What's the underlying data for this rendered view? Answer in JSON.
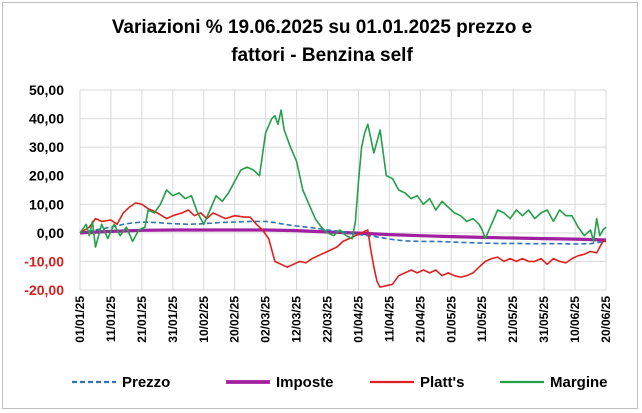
{
  "chart_data": {
    "type": "line",
    "title_lines": [
      "Variazioni % 19.06.2025 su 01.01.2025 prezzo e",
      "fattori - Benzina self"
    ],
    "xlabel": "",
    "ylabel": "",
    "ylim": [
      -20,
      50
    ],
    "y_ticks": [
      "50,00",
      "40,00",
      "30,00",
      "20,00",
      "10,00",
      "0,00",
      "-10,00",
      "-20,00"
    ],
    "y_tick_values": [
      50,
      40,
      30,
      20,
      10,
      0,
      -10,
      -20
    ],
    "negative_tick_color": "#d62020",
    "grid": true,
    "legend_position": "bottom",
    "x_tick_labels": [
      "01/01/25",
      "11/01/25",
      "21/01/25",
      "31/01/25",
      "10/02/25",
      "20/02/25",
      "02/03/25",
      "12/03/25",
      "22/03/25",
      "01/04/25",
      "11/04/25",
      "21/04/25",
      "01/05/25",
      "11/05/25",
      "21/05/25",
      "31/05/25",
      "10/06/25",
      "20/06/25"
    ],
    "x_tick_days": [
      0,
      10,
      20,
      30,
      40,
      50,
      60,
      70,
      80,
      90,
      100,
      110,
      120,
      130,
      140,
      150,
      160,
      170
    ],
    "x_range_days": [
      0,
      170
    ],
    "series": [
      {
        "name": "Prezzo",
        "color": "#2e75b6",
        "style": "dashed",
        "points": [
          [
            0,
            0
          ],
          [
            5,
            1
          ],
          [
            10,
            2
          ],
          [
            15,
            3.2
          ],
          [
            20,
            3.8
          ],
          [
            25,
            3.6
          ],
          [
            30,
            3.2
          ],
          [
            35,
            3
          ],
          [
            40,
            3.2
          ],
          [
            45,
            3.6
          ],
          [
            50,
            3.8
          ],
          [
            55,
            4
          ],
          [
            60,
            4
          ],
          [
            63,
            3.6
          ],
          [
            66,
            3
          ],
          [
            70,
            2.4
          ],
          [
            75,
            1.8
          ],
          [
            80,
            1
          ],
          [
            85,
            0.4
          ],
          [
            90,
            -0.6
          ],
          [
            95,
            -1.2
          ],
          [
            100,
            -2.2
          ],
          [
            105,
            -2.8
          ],
          [
            110,
            -3
          ],
          [
            115,
            -3
          ],
          [
            120,
            -3.2
          ],
          [
            125,
            -3.4
          ],
          [
            130,
            -3.6
          ],
          [
            135,
            -3.7
          ],
          [
            140,
            -3.7
          ],
          [
            145,
            -3.8
          ],
          [
            150,
            -3.8
          ],
          [
            155,
            -3.8
          ],
          [
            160,
            -3.9
          ],
          [
            165,
            -3.8
          ],
          [
            170,
            -2.9
          ]
        ]
      },
      {
        "name": "Imposte",
        "color": "#a020a0",
        "style": "solid-thick",
        "points": [
          [
            0,
            0
          ],
          [
            10,
            0.5
          ],
          [
            20,
            0.9
          ],
          [
            30,
            1
          ],
          [
            40,
            1
          ],
          [
            50,
            1
          ],
          [
            60,
            1
          ],
          [
            70,
            0.8
          ],
          [
            80,
            0.3
          ],
          [
            90,
            -0.1
          ],
          [
            100,
            -0.6
          ],
          [
            110,
            -1
          ],
          [
            120,
            -1.3
          ],
          [
            130,
            -1.6
          ],
          [
            140,
            -1.8
          ],
          [
            150,
            -2
          ],
          [
            160,
            -2.2
          ],
          [
            170,
            -2.5
          ]
        ]
      },
      {
        "name": "Platt's",
        "color": "#e02020",
        "style": "solid",
        "points": [
          [
            0,
            0
          ],
          [
            3,
            2
          ],
          [
            5,
            5
          ],
          [
            7,
            4
          ],
          [
            10,
            4.5
          ],
          [
            12,
            3
          ],
          [
            14,
            7
          ],
          [
            16,
            9
          ],
          [
            18,
            10.5
          ],
          [
            20,
            10
          ],
          [
            22,
            8.5
          ],
          [
            25,
            7
          ],
          [
            28,
            5
          ],
          [
            30,
            6
          ],
          [
            33,
            7
          ],
          [
            35,
            8
          ],
          [
            37,
            6
          ],
          [
            39,
            7
          ],
          [
            41,
            5
          ],
          [
            43,
            7
          ],
          [
            45,
            6
          ],
          [
            47,
            5
          ],
          [
            50,
            6
          ],
          [
            53,
            5.5
          ],
          [
            55,
            5.5
          ],
          [
            57,
            3
          ],
          [
            59,
            1
          ],
          [
            61,
            -2
          ],
          [
            62,
            -6
          ],
          [
            63,
            -10
          ],
          [
            65,
            -11
          ],
          [
            67,
            -12
          ],
          [
            69,
            -11
          ],
          [
            71,
            -10
          ],
          [
            73,
            -10.5
          ],
          [
            75,
            -9
          ],
          [
            77,
            -8
          ],
          [
            79,
            -7
          ],
          [
            81,
            -6
          ],
          [
            83,
            -5
          ],
          [
            85,
            -3
          ],
          [
            87,
            -2
          ],
          [
            89,
            -1
          ],
          [
            91,
            0
          ],
          [
            93,
            1
          ],
          [
            94,
            -6
          ],
          [
            95,
            -12
          ],
          [
            96,
            -17
          ],
          [
            97,
            -19
          ],
          [
            99,
            -18.5
          ],
          [
            101,
            -18
          ],
          [
            103,
            -15
          ],
          [
            105,
            -14
          ],
          [
            107,
            -13
          ],
          [
            109,
            -14
          ],
          [
            111,
            -13
          ],
          [
            113,
            -14
          ],
          [
            115,
            -13
          ],
          [
            117,
            -15
          ],
          [
            119,
            -14
          ],
          [
            121,
            -15
          ],
          [
            123,
            -15.5
          ],
          [
            125,
            -15
          ],
          [
            127,
            -14
          ],
          [
            129,
            -12
          ],
          [
            131,
            -10
          ],
          [
            133,
            -9
          ],
          [
            135,
            -8.5
          ],
          [
            137,
            -10
          ],
          [
            139,
            -9
          ],
          [
            141,
            -10
          ],
          [
            143,
            -9
          ],
          [
            145,
            -10
          ],
          [
            147,
            -10
          ],
          [
            149,
            -9
          ],
          [
            151,
            -11
          ],
          [
            153,
            -9
          ],
          [
            155,
            -10
          ],
          [
            157,
            -10.5
          ],
          [
            159,
            -9
          ],
          [
            161,
            -8
          ],
          [
            163,
            -7.5
          ],
          [
            165,
            -6.5
          ],
          [
            167,
            -7
          ],
          [
            168,
            -5
          ],
          [
            169,
            -3
          ],
          [
            170,
            -3
          ]
        ]
      },
      {
        "name": "Margine",
        "color": "#22a04a",
        "style": "solid",
        "points": [
          [
            0,
            0
          ],
          [
            2,
            3
          ],
          [
            3,
            -1
          ],
          [
            4,
            4
          ],
          [
            5,
            -5
          ],
          [
            7,
            3
          ],
          [
            9,
            -2
          ],
          [
            11,
            3
          ],
          [
            13,
            -1
          ],
          [
            15,
            2
          ],
          [
            17,
            -3
          ],
          [
            19,
            1
          ],
          [
            21,
            2
          ],
          [
            22,
            8
          ],
          [
            24,
            7
          ],
          [
            26,
            10
          ],
          [
            28,
            15
          ],
          [
            30,
            13
          ],
          [
            32,
            14
          ],
          [
            34,
            12
          ],
          [
            36,
            13
          ],
          [
            38,
            7
          ],
          [
            40,
            3
          ],
          [
            42,
            8
          ],
          [
            44,
            13
          ],
          [
            46,
            11
          ],
          [
            48,
            14
          ],
          [
            50,
            18
          ],
          [
            52,
            22
          ],
          [
            54,
            23
          ],
          [
            56,
            22
          ],
          [
            58,
            20
          ],
          [
            60,
            35
          ],
          [
            62,
            40
          ],
          [
            63,
            41
          ],
          [
            64,
            38
          ],
          [
            65,
            43
          ],
          [
            66,
            36
          ],
          [
            68,
            30
          ],
          [
            70,
            25
          ],
          [
            72,
            15
          ],
          [
            74,
            10
          ],
          [
            76,
            5
          ],
          [
            78,
            2
          ],
          [
            80,
            0
          ],
          [
            82,
            -1
          ],
          [
            84,
            1
          ],
          [
            86,
            -1
          ],
          [
            88,
            -2
          ],
          [
            89,
            4
          ],
          [
            90,
            18
          ],
          [
            91,
            30
          ],
          [
            92,
            35
          ],
          [
            93,
            38
          ],
          [
            95,
            28
          ],
          [
            97,
            36
          ],
          [
            99,
            20
          ],
          [
            101,
            19
          ],
          [
            103,
            15
          ],
          [
            105,
            14
          ],
          [
            107,
            12
          ],
          [
            109,
            13
          ],
          [
            111,
            10
          ],
          [
            113,
            12
          ],
          [
            115,
            8
          ],
          [
            117,
            11
          ],
          [
            119,
            9
          ],
          [
            121,
            7
          ],
          [
            123,
            6
          ],
          [
            125,
            4
          ],
          [
            127,
            5
          ],
          [
            129,
            3
          ],
          [
            130,
            1
          ],
          [
            131,
            -2
          ],
          [
            133,
            3
          ],
          [
            135,
            8
          ],
          [
            137,
            7
          ],
          [
            139,
            5
          ],
          [
            141,
            8
          ],
          [
            143,
            6
          ],
          [
            145,
            8
          ],
          [
            147,
            5
          ],
          [
            149,
            7
          ],
          [
            151,
            8
          ],
          [
            153,
            4
          ],
          [
            155,
            8
          ],
          [
            157,
            6
          ],
          [
            159,
            6
          ],
          [
            161,
            2
          ],
          [
            163,
            -1
          ],
          [
            165,
            1
          ],
          [
            166,
            -3
          ],
          [
            167,
            5
          ],
          [
            168,
            -1
          ],
          [
            169,
            1
          ],
          [
            170,
            2
          ]
        ]
      }
    ]
  }
}
